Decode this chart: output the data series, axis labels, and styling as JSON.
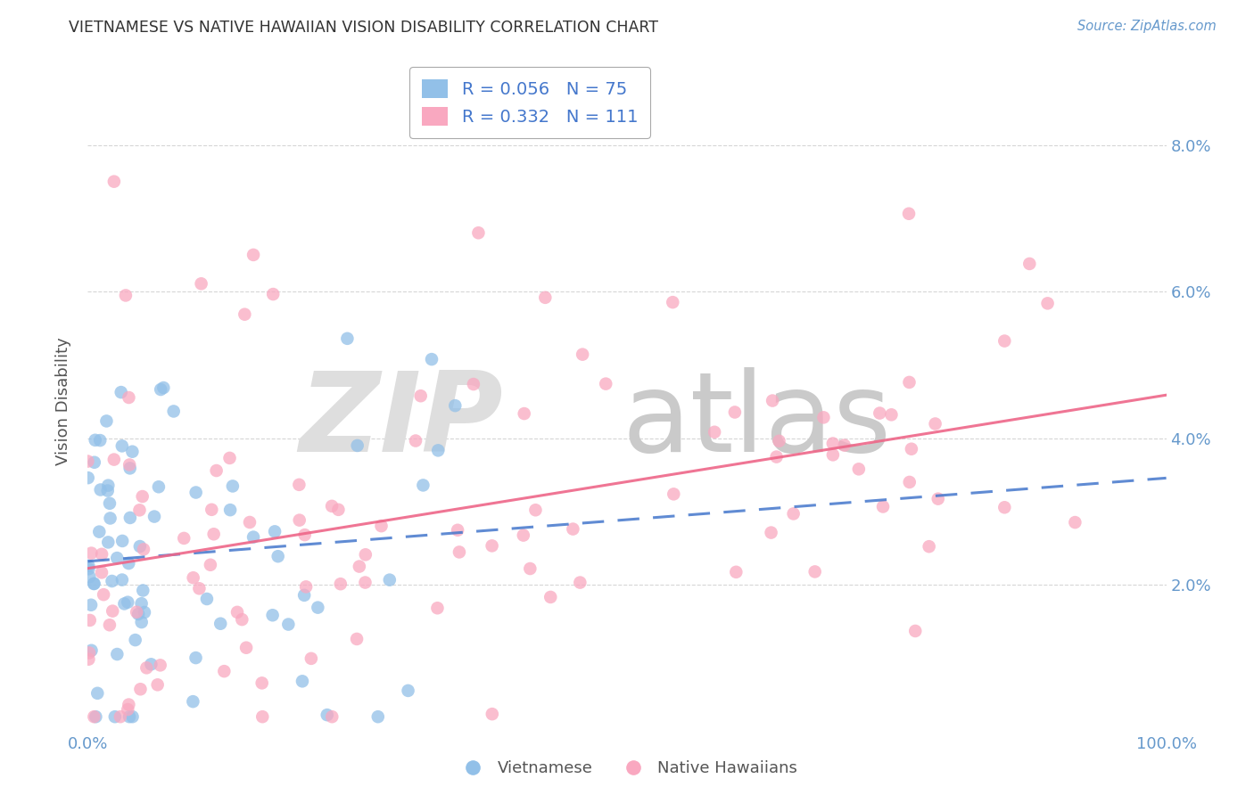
{
  "title": "VIETNAMESE VS NATIVE HAWAIIAN VISION DISABILITY CORRELATION CHART",
  "source": "Source: ZipAtlas.com",
  "ylabel": "Vision Disability",
  "xlim": [
    0.0,
    1.0
  ],
  "ylim": [
    0.0,
    0.09
  ],
  "yticks": [
    0.02,
    0.04,
    0.06,
    0.08
  ],
  "ytick_labels": [
    "2.0%",
    "4.0%",
    "6.0%",
    "8.0%"
  ],
  "xtick_labels_show": [
    "0.0%",
    "100.0%"
  ],
  "legend_r1": "R = 0.056",
  "legend_n1": "N = 75",
  "legend_r2": "R = 0.332",
  "legend_n2": "N = 111",
  "blue_color": "#92C0E8",
  "pink_color": "#F9A8C0",
  "blue_line_color": "#4477CC",
  "pink_line_color": "#EE6688",
  "axis_label_color": "#6699CC",
  "title_color": "#333333",
  "source_color": "#6699CC",
  "ylabel_color": "#555555",
  "background_color": "#FFFFFF",
  "grid_color": "#CCCCCC",
  "legend_text_color": "#4477CC",
  "bottom_legend_color": "#555555",
  "watermark_zip_color": "#DEDEDE",
  "watermark_atlas_color": "#CACACA",
  "blue_N": 75,
  "pink_N": 111,
  "blue_R": 0.056,
  "pink_R": 0.332,
  "pink_line_start_y": 0.022,
  "pink_line_end_y": 0.046,
  "blue_line_start_y": 0.023,
  "blue_line_end_y": 0.035
}
